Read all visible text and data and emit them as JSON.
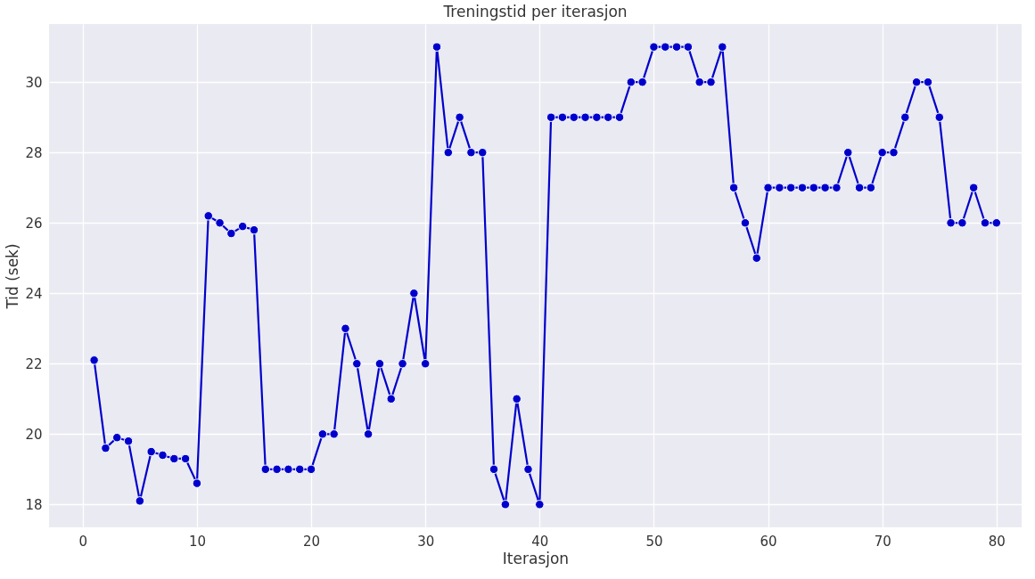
{
  "chart_data": {
    "type": "line",
    "title": "Treningstid per iterasjon",
    "xlabel": "Iterasjon",
    "ylabel": "Tid (sek)",
    "x": [
      1,
      2,
      3,
      4,
      5,
      6,
      7,
      8,
      9,
      10,
      11,
      12,
      13,
      14,
      15,
      16,
      17,
      18,
      19,
      20,
      21,
      22,
      23,
      24,
      25,
      26,
      27,
      28,
      29,
      30,
      31,
      32,
      33,
      34,
      35,
      36,
      37,
      38,
      39,
      40,
      41,
      42,
      43,
      44,
      45,
      46,
      47,
      48,
      49,
      50,
      51,
      52,
      53,
      54,
      55,
      56,
      57,
      58,
      59,
      60,
      61,
      62,
      63,
      64,
      65,
      66,
      67,
      68,
      69,
      70,
      71,
      72,
      73,
      74,
      75,
      76,
      77,
      78,
      79,
      80
    ],
    "series": [
      {
        "color": "#0000cd",
        "values": [
          22.1,
          19.6,
          19.9,
          19.8,
          18.1,
          19.5,
          19.4,
          19.3,
          19.3,
          18.6,
          26.2,
          26.0,
          25.7,
          25.9,
          25.8,
          19,
          19,
          19,
          19,
          19,
          20,
          20,
          23,
          22,
          20,
          22,
          21,
          22,
          24,
          22,
          31,
          28,
          29,
          28,
          28,
          19,
          18,
          21,
          19,
          18,
          29,
          29,
          29,
          29,
          29,
          29,
          29,
          30,
          30,
          31,
          31,
          31,
          31,
          30,
          30,
          31,
          27,
          26,
          25,
          27,
          27,
          27,
          27,
          27,
          27,
          27,
          28,
          27,
          27,
          28,
          28,
          29,
          30,
          30,
          29,
          26,
          26,
          27,
          26,
          26
        ]
      }
    ],
    "xlim": [
      -2.95,
      82.2
    ],
    "ylim": [
      17.35,
      31.65
    ],
    "xticks": [
      0,
      10,
      20,
      30,
      40,
      50,
      60,
      70,
      80
    ],
    "yticks": [
      18,
      20,
      22,
      24,
      26,
      28,
      30
    ],
    "grid": true,
    "marker": "circle",
    "line_style": "solid"
  }
}
